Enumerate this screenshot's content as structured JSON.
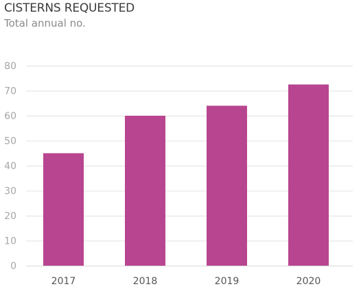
{
  "chart_data": {
    "type": "bar",
    "title": "CISTERNS REQUESTED",
    "subtitle": "Total annual no.",
    "xlabel": "",
    "ylabel": "",
    "categories": [
      "2017",
      "2018",
      "2019",
      "2020"
    ],
    "values": [
      45,
      60,
      64,
      72.5
    ],
    "ylim": [
      0,
      80
    ],
    "yticks": [
      0,
      10,
      20,
      30,
      40,
      50,
      60,
      70,
      80
    ],
    "grid": true,
    "legend": "none",
    "bar_color": "#b8458f"
  }
}
